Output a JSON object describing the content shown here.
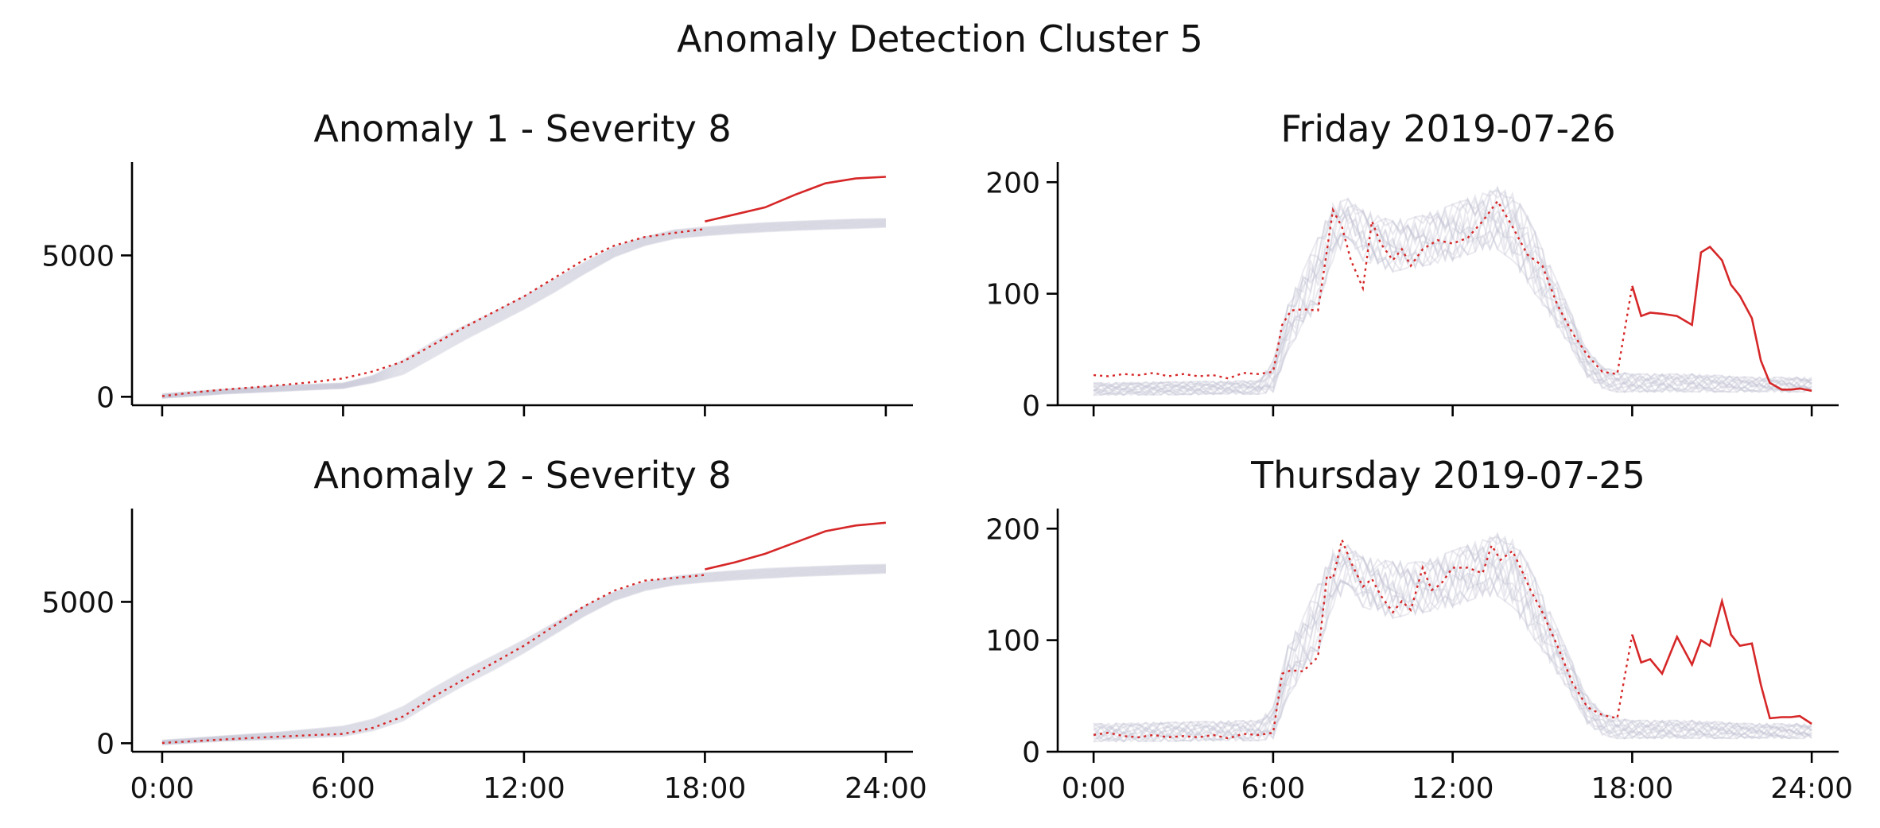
{
  "figure": {
    "suptitle": "Anomaly Detection Cluster 5"
  },
  "colors": {
    "highlight": "#d62728",
    "background_lines": "#c4c4d4",
    "axis": "#000000"
  },
  "chart_data": [
    {
      "type": "line",
      "title": "Anomaly 1 - Severity 8",
      "xlabel": "",
      "ylabel": "",
      "xlim": [
        -1,
        24.9
      ],
      "ylim": [
        -300,
        8300
      ],
      "xticks": [
        0,
        6,
        12,
        18,
        24
      ],
      "xticklabels": [
        "",
        "",
        "",
        "",
        ""
      ],
      "yticks": [
        0,
        5000
      ],
      "yticklabels": [
        "0",
        "5000"
      ],
      "grid": false,
      "anomaly_start": 18,
      "background_band": {
        "x": [
          0,
          2,
          4,
          6,
          7,
          8,
          9,
          10,
          11,
          12,
          13,
          14,
          15,
          16,
          17,
          18,
          19,
          20,
          21,
          22,
          23,
          24
        ],
        "low": [
          -50,
          100,
          200,
          300,
          500,
          800,
          1400,
          2000,
          2550,
          3100,
          3700,
          4350,
          4950,
          5350,
          5600,
          5700,
          5780,
          5840,
          5890,
          5930,
          5960,
          6000
        ],
        "high": [
          100,
          260,
          400,
          480,
          750,
          1300,
          1950,
          2500,
          3000,
          3550,
          4150,
          4750,
          5300,
          5650,
          5900,
          6000,
          6080,
          6150,
          6200,
          6240,
          6280,
          6300
        ]
      },
      "series": [
        {
          "style": "dotted",
          "x": [
            0,
            1,
            2,
            3,
            4,
            5,
            6,
            7,
            8,
            9,
            10,
            11,
            12,
            13,
            14,
            15,
            16,
            17,
            18
          ],
          "values": [
            20,
            150,
            250,
            330,
            420,
            520,
            650,
            900,
            1250,
            1850,
            2450,
            3000,
            3550,
            4200,
            4850,
            5350,
            5650,
            5800,
            5930
          ]
        },
        {
          "style": "solid",
          "x": [
            18,
            19,
            20,
            21,
            22,
            23,
            24
          ],
          "values": [
            6200,
            6450,
            6700,
            7150,
            7550,
            7720,
            7780
          ]
        }
      ]
    },
    {
      "type": "line",
      "title": "Friday 2019-07-26",
      "xlabel": "",
      "ylabel": "",
      "xlim": [
        -1.2,
        24.9
      ],
      "ylim": [
        0,
        218
      ],
      "xticks": [
        0,
        6,
        12,
        18,
        24
      ],
      "xticklabels": [
        "",
        "",
        "",
        "",
        ""
      ],
      "yticks": [
        0,
        100,
        200
      ],
      "yticklabels": [
        "0",
        "100",
        "200"
      ],
      "grid": false,
      "anomaly_start": 18,
      "background_band": {
        "x": [
          0,
          5.5,
          6,
          6.5,
          7,
          7.5,
          8,
          8.5,
          9,
          10,
          11,
          12,
          13,
          13.5,
          14,
          14.5,
          15,
          15.5,
          16,
          16.5,
          17,
          17.5,
          18,
          20,
          22,
          24
        ],
        "low": [
          9,
          10,
          12,
          50,
          70,
          90,
          130,
          150,
          130,
          120,
          125,
          130,
          140,
          140,
          130,
          110,
          90,
          70,
          50,
          25,
          15,
          12,
          12,
          12,
          12,
          12
        ],
        "high": [
          20,
          22,
          40,
          90,
          120,
          150,
          180,
          185,
          175,
          165,
          170,
          180,
          190,
          195,
          190,
          170,
          140,
          110,
          80,
          50,
          35,
          30,
          28,
          28,
          25,
          25
        ]
      },
      "series": [
        {
          "style": "dotted",
          "x": [
            0,
            0.5,
            1,
            1.5,
            2,
            2.5,
            3,
            3.5,
            4,
            4.5,
            5,
            5.5,
            6,
            6.3,
            6.6,
            7,
            7.5,
            8,
            8.3,
            8.6,
            9,
            9.3,
            9.6,
            10,
            10.3,
            10.6,
            11,
            11.5,
            12,
            12.5,
            13,
            13.5,
            14,
            14.5,
            15,
            15.5,
            16,
            16.5,
            17,
            17.5,
            18
          ],
          "values": [
            27,
            26,
            28,
            27,
            29,
            26,
            28,
            26,
            27,
            24,
            29,
            28,
            30,
            72,
            85,
            86,
            85,
            175,
            160,
            130,
            105,
            165,
            145,
            130,
            140,
            125,
            140,
            148,
            145,
            150,
            165,
            183,
            160,
            135,
            125,
            90,
            65,
            45,
            30,
            28,
            107
          ]
        },
        {
          "style": "solid",
          "x": [
            18,
            18.3,
            18.6,
            19,
            19.5,
            20,
            20.3,
            20.6,
            21,
            21.3,
            21.6,
            22,
            22.3,
            22.6,
            23,
            23.3,
            23.6,
            24
          ],
          "values": [
            107,
            80,
            83,
            82,
            80,
            72,
            137,
            142,
            130,
            108,
            98,
            78,
            40,
            20,
            14,
            14,
            15,
            13
          ]
        }
      ]
    },
    {
      "type": "line",
      "title": "Anomaly 2 - Severity 8",
      "xlabel": "",
      "ylabel": "",
      "xlim": [
        -1,
        24.9
      ],
      "ylim": [
        -300,
        8300
      ],
      "xticks": [
        0,
        6,
        12,
        18,
        24
      ],
      "xticklabels": [
        "0:00",
        "6:00",
        "12:00",
        "18:00",
        "24:00"
      ],
      "yticks": [
        0,
        5000
      ],
      "yticklabels": [
        "0",
        "5000"
      ],
      "grid": false,
      "anomaly_start": 18,
      "background_band": {
        "x": [
          0,
          2,
          4,
          6,
          7,
          8,
          9,
          10,
          11,
          12,
          13,
          14,
          15,
          16,
          17,
          18,
          19,
          20,
          21,
          22,
          23,
          24
        ],
        "low": [
          -50,
          80,
          150,
          250,
          450,
          800,
          1450,
          2050,
          2600,
          3200,
          3850,
          4500,
          5050,
          5400,
          5600,
          5700,
          5780,
          5840,
          5900,
          5940,
          5980,
          6020
        ],
        "high": [
          100,
          250,
          400,
          600,
          850,
          1300,
          1950,
          2550,
          3100,
          3650,
          4250,
          4850,
          5350,
          5700,
          5900,
          6020,
          6100,
          6170,
          6220,
          6260,
          6300,
          6320
        ]
      },
      "series": [
        {
          "style": "dotted",
          "x": [
            0,
            1,
            2,
            3,
            4,
            5,
            6,
            7,
            8,
            9,
            10,
            11,
            12,
            13,
            14,
            15,
            16,
            17,
            18
          ],
          "values": [
            10,
            70,
            130,
            190,
            240,
            290,
            330,
            550,
            950,
            1650,
            2250,
            2850,
            3450,
            4150,
            4850,
            5400,
            5750,
            5850,
            5950
          ]
        },
        {
          "style": "solid",
          "x": [
            18,
            19,
            20,
            21,
            22,
            23,
            24
          ],
          "values": [
            6150,
            6400,
            6700,
            7100,
            7500,
            7700,
            7800
          ]
        }
      ]
    },
    {
      "type": "line",
      "title": "Thursday 2019-07-25",
      "xlabel": "",
      "ylabel": "",
      "xlim": [
        -1.2,
        24.9
      ],
      "ylim": [
        0,
        218
      ],
      "xticks": [
        0,
        6,
        12,
        18,
        24
      ],
      "xticklabels": [
        "0:00",
        "6:00",
        "12:00",
        "18:00",
        "24:00"
      ],
      "yticks": [
        0,
        100,
        200
      ],
      "yticklabels": [
        "0",
        "100",
        "200"
      ],
      "grid": false,
      "anomaly_start": 18,
      "background_band": {
        "x": [
          0,
          5.5,
          6,
          6.5,
          7,
          7.5,
          8,
          8.5,
          9,
          10,
          11,
          12,
          13,
          13.5,
          14,
          14.5,
          15,
          15.5,
          16,
          16.5,
          17,
          17.5,
          18,
          20,
          22,
          24
        ],
        "low": [
          9,
          10,
          12,
          50,
          70,
          90,
          130,
          150,
          130,
          120,
          125,
          130,
          140,
          140,
          130,
          110,
          90,
          70,
          50,
          25,
          15,
          12,
          12,
          12,
          12,
          12
        ],
        "high": [
          25,
          28,
          40,
          95,
          120,
          150,
          180,
          185,
          175,
          170,
          170,
          180,
          190,
          195,
          190,
          170,
          140,
          110,
          80,
          50,
          35,
          30,
          28,
          28,
          25,
          25
        ]
      },
      "series": [
        {
          "style": "dotted",
          "x": [
            0,
            0.5,
            1,
            1.5,
            2,
            2.5,
            3,
            3.5,
            4,
            4.5,
            5,
            5.5,
            6,
            6.3,
            6.6,
            7,
            7.5,
            7.8,
            8,
            8.3,
            8.6,
            9,
            9.3,
            9.6,
            10,
            10.3,
            10.6,
            11,
            11.3,
            11.6,
            12,
            12.5,
            13,
            13.3,
            13.6,
            14,
            14.3,
            14.6,
            15,
            15.5,
            16,
            16.5,
            17,
            17.5,
            18
          ],
          "values": [
            15,
            17,
            14,
            13,
            15,
            13,
            14,
            13,
            15,
            12,
            16,
            15,
            17,
            70,
            73,
            72,
            85,
            158,
            155,
            190,
            170,
            148,
            155,
            140,
            125,
            135,
            127,
            165,
            145,
            150,
            165,
            165,
            160,
            185,
            172,
            180,
            163,
            145,
            125,
            95,
            62,
            40,
            33,
            30,
            105
          ]
        },
        {
          "style": "solid",
          "x": [
            18,
            18.3,
            18.6,
            19,
            19.5,
            20,
            20.3,
            20.6,
            21,
            21.3,
            21.6,
            22,
            22.3,
            22.6,
            23,
            23.3,
            23.6,
            24
          ],
          "values": [
            105,
            80,
            83,
            70,
            103,
            78,
            100,
            95,
            135,
            105,
            95,
            97,
            60,
            30,
            31,
            31,
            32,
            25
          ]
        }
      ]
    }
  ]
}
